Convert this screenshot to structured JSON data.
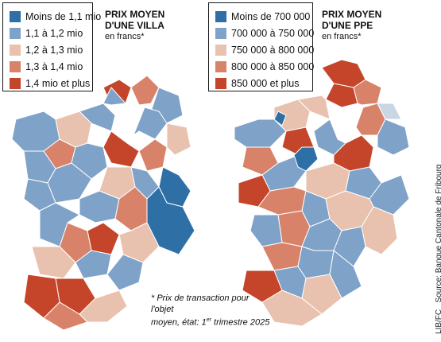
{
  "colors": {
    "c1": "#2e6fa6",
    "c2": "#7fa2c9",
    "c3": "#e8c2ae",
    "c4": "#d9826a",
    "c5": "#c4452a",
    "light": "#c9d6e4",
    "border": "#ffffff"
  },
  "villa": {
    "title_line1": "PRIX MOYEN",
    "title_line2": "D'UNE VILLA",
    "title_unit": "en francs*",
    "legend": [
      {
        "label": "Moins de 1,1 mio",
        "color": "#2e6fa6"
      },
      {
        "label": "1,1 à 1,2 mio",
        "color": "#7fa2c9"
      },
      {
        "label": "1,2 à 1,3 mio",
        "color": "#e8c2ae"
      },
      {
        "label": "1,3 à 1,4 mio",
        "color": "#d9826a"
      },
      {
        "label": "1,4 mio et plus",
        "color": "#c4452a"
      }
    ]
  },
  "ppe": {
    "title_line1": "PRIX MOYEN",
    "title_line2": "D'UNE PPE",
    "title_unit": "en francs*",
    "legend": [
      {
        "label": "Moins de 700 000",
        "color": "#2e6fa6"
      },
      {
        "label": "700 000 à 750 000",
        "color": "#7fa2c9"
      },
      {
        "label": "750 000 à 800 000",
        "color": "#e8c2ae"
      },
      {
        "label": "800 000 à 850 000",
        "color": "#d9826a"
      },
      {
        "label": "850 000 et plus",
        "color": "#c4452a"
      }
    ]
  },
  "footnote": {
    "line1": "* Prix de transaction pour l'objet",
    "line2_pre": "moyen, état: 1",
    "line2_sup": "er",
    "line2_post": " trimestre 2025"
  },
  "source": "LIB/FC",
  "source2": "Source: Banque Cantonale de Fribourg"
}
